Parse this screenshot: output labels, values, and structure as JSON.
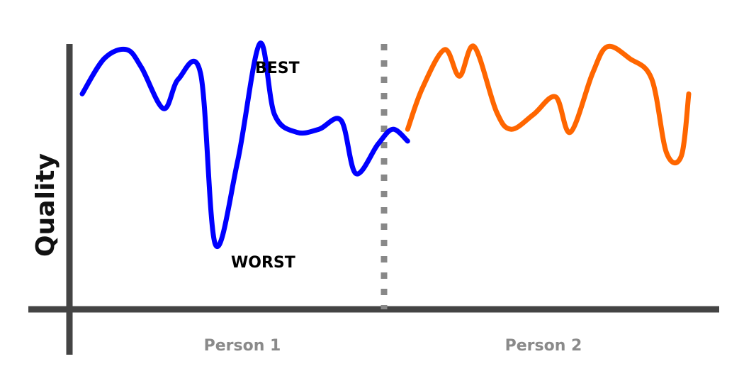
{
  "chart_data": {
    "type": "line",
    "title": "",
    "xlabel": "",
    "ylabel": "Quality",
    "categories": [
      "Person 1",
      "Person 2"
    ],
    "ylim": [
      0,
      100
    ],
    "grid": false,
    "legend": "none",
    "series": [
      {
        "color": "#0000ff",
        "x": [
          0,
          3,
          6,
          8,
          11,
          13,
          16,
          18,
          21,
          24,
          26,
          29,
          32,
          35,
          37,
          40,
          42,
          44
        ],
        "y": [
          73,
          85,
          88,
          82,
          68,
          78,
          80,
          22,
          50,
          90,
          66,
          60,
          61,
          64,
          46,
          56,
          61,
          57
        ]
      },
      {
        "color": "#ff6600",
        "x": [
          44,
          46,
          49,
          51,
          53,
          56,
          58,
          61,
          64,
          66,
          69,
          71,
          74,
          77,
          79,
          81,
          82
        ],
        "y": [
          61,
          75,
          88,
          79,
          89,
          67,
          61,
          66,
          72,
          60,
          80,
          89,
          85,
          78,
          53,
          52,
          73
        ]
      }
    ],
    "annotations": [
      {
        "text": "BEST"
      },
      {
        "text": "WORST"
      }
    ],
    "divider_color": "#888888",
    "axis_color": "#444444"
  }
}
